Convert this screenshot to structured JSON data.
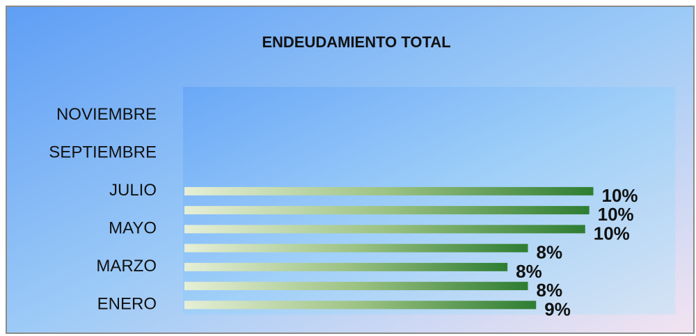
{
  "chart_data": {
    "type": "barh",
    "title": "ENDEUDAMIENTO TOTAL",
    "categories": [
      "ENERO",
      null,
      "MARZO",
      null,
      "MAYO",
      null,
      "JULIO",
      null,
      "SEPTIEMBRE",
      null,
      "NOVIEMBRE",
      null
    ],
    "values": [
      8.6,
      8.4,
      7.9,
      8.4,
      9.8,
      9.9,
      10.0,
      null,
      null,
      null,
      null,
      null
    ],
    "value_labels": [
      "9%",
      "8%",
      "8%",
      "8%",
      "10%",
      "10%",
      "10%",
      null,
      null,
      null,
      null,
      null
    ],
    "color": "#2e7d32",
    "xlim": [
      0,
      12
    ]
  }
}
